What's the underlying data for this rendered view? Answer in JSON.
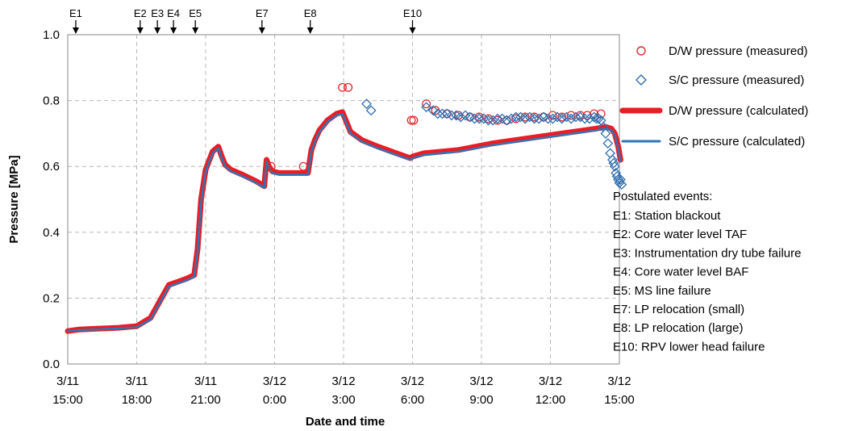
{
  "chart_data": {
    "type": "scatter",
    "xlabel": "Date and time",
    "ylabel": "Pressure [MPa]",
    "xlim": [
      "3/11 15:00",
      "3/12 15:00"
    ],
    "ylim": [
      0,
      1.0
    ],
    "grid": true,
    "legend_position": "right",
    "x_ticks": [
      {
        "hour": 0,
        "line1": "3/11",
        "line2": "15:00"
      },
      {
        "hour": 3,
        "line1": "3/11",
        "line2": "18:00"
      },
      {
        "hour": 6,
        "line1": "3/11",
        "line2": "21:00"
      },
      {
        "hour": 9,
        "line1": "3/12",
        "line2": "0:00"
      },
      {
        "hour": 12,
        "line1": "3/12",
        "line2": "3:00"
      },
      {
        "hour": 15,
        "line1": "3/12",
        "line2": "6:00"
      },
      {
        "hour": 18,
        "line1": "3/12",
        "line2": "9:00"
      },
      {
        "hour": 21,
        "line1": "3/12",
        "line2": "12:00"
      },
      {
        "hour": 24,
        "line1": "3/12",
        "line2": "15:00"
      }
    ],
    "y_ticks": [
      "0.0",
      "0.2",
      "0.4",
      "0.6",
      "0.8",
      "1.0"
    ],
    "events": [
      {
        "label": "E1",
        "hour": 0.35
      },
      {
        "label": "E2",
        "hour": 3.15
      },
      {
        "label": "E3",
        "hour": 3.9
      },
      {
        "label": "E4",
        "hour": 4.6
      },
      {
        "label": "E5",
        "hour": 5.55
      },
      {
        "label": "E7",
        "hour": 8.45
      },
      {
        "label": "E8",
        "hour": 10.55
      },
      {
        "label": "E10",
        "hour": 15.0
      }
    ],
    "series": [
      {
        "name": "D/W pressure (measured)",
        "kind": "scatter",
        "marker": "circle",
        "color": "#e8262b",
        "x": [
          8.85,
          10.25,
          11.95,
          12.2,
          15.05,
          14.95,
          15.6,
          16.0,
          16.5,
          17.0,
          17.5,
          17.9,
          18.3,
          18.7,
          19.1,
          19.5,
          19.9,
          20.3,
          20.7,
          21.1,
          21.5,
          21.9,
          22.3,
          22.6,
          22.9,
          23.2
        ],
        "y": [
          0.6,
          0.6,
          0.84,
          0.84,
          0.74,
          0.74,
          0.79,
          0.77,
          0.76,
          0.755,
          0.75,
          0.75,
          0.745,
          0.74,
          0.74,
          0.745,
          0.75,
          0.75,
          0.75,
          0.755,
          0.75,
          0.755,
          0.755,
          0.755,
          0.76,
          0.76
        ]
      },
      {
        "name": "S/C pressure (measured)",
        "kind": "scatter",
        "marker": "diamond",
        "color": "#2f6fb0",
        "x": [
          13.0,
          13.2,
          15.6,
          15.9,
          16.1,
          16.3,
          16.5,
          16.7,
          16.9,
          17.1,
          17.3,
          17.5,
          17.7,
          17.9,
          18.1,
          18.3,
          18.5,
          18.7,
          18.9,
          19.1,
          19.3,
          19.5,
          19.7,
          19.9,
          20.1,
          20.3,
          20.5,
          20.7,
          20.9,
          21.1,
          21.3,
          21.5,
          21.7,
          21.9,
          22.1,
          22.3,
          22.5,
          22.7,
          22.9,
          23.0,
          23.1,
          23.2,
          23.3,
          23.4,
          23.5,
          23.6,
          23.7,
          23.75,
          23.8,
          23.85,
          23.9,
          23.95,
          24.0,
          24.05,
          24.1
        ],
        "y": [
          0.79,
          0.77,
          0.78,
          0.77,
          0.76,
          0.76,
          0.76,
          0.755,
          0.755,
          0.75,
          0.755,
          0.75,
          0.745,
          0.745,
          0.745,
          0.74,
          0.74,
          0.745,
          0.745,
          0.74,
          0.745,
          0.75,
          0.75,
          0.745,
          0.75,
          0.745,
          0.745,
          0.75,
          0.745,
          0.745,
          0.75,
          0.745,
          0.75,
          0.745,
          0.75,
          0.75,
          0.745,
          0.745,
          0.75,
          0.745,
          0.745,
          0.74,
          0.72,
          0.7,
          0.67,
          0.64,
          0.62,
          0.61,
          0.6,
          0.58,
          0.57,
          0.56,
          0.55,
          0.56,
          0.545
        ]
      },
      {
        "name": "D/W pressure (calculated)",
        "kind": "line",
        "color": "#ea1c24",
        "stroke": "thick",
        "x": [
          0.0,
          0.5,
          2.2,
          3.0,
          3.6,
          4.0,
          4.4,
          4.8,
          5.2,
          5.5,
          5.65,
          5.8,
          6.0,
          6.3,
          6.55,
          6.7,
          6.85,
          7.1,
          7.6,
          8.2,
          8.55,
          8.65,
          8.75,
          8.9,
          9.2,
          10.0,
          10.45,
          10.6,
          10.75,
          10.95,
          11.3,
          11.7,
          11.95,
          12.1,
          12.3,
          12.8,
          13.5,
          14.3,
          14.9,
          15.0,
          15.5,
          17.0,
          18.5,
          20.0,
          21.5,
          23.0,
          23.4,
          23.65,
          23.8,
          23.95,
          24.05
        ],
        "y": [
          0.1,
          0.105,
          0.11,
          0.115,
          0.14,
          0.19,
          0.24,
          0.25,
          0.26,
          0.27,
          0.35,
          0.5,
          0.59,
          0.645,
          0.66,
          0.63,
          0.605,
          0.59,
          0.575,
          0.555,
          0.54,
          0.62,
          0.6,
          0.585,
          0.58,
          0.58,
          0.58,
          0.65,
          0.68,
          0.71,
          0.74,
          0.76,
          0.765,
          0.74,
          0.705,
          0.68,
          0.66,
          0.64,
          0.625,
          0.63,
          0.64,
          0.65,
          0.67,
          0.685,
          0.7,
          0.715,
          0.72,
          0.715,
          0.7,
          0.66,
          0.62
        ]
      },
      {
        "name": "S/C pressure (calculated)",
        "kind": "line",
        "color": "#2e75b6",
        "stroke": "thin",
        "x": [
          0.0,
          0.5,
          2.2,
          3.0,
          3.6,
          4.0,
          4.4,
          4.8,
          5.2,
          5.5,
          5.65,
          5.8,
          6.0,
          6.3,
          6.55,
          6.7,
          6.85,
          7.1,
          7.6,
          8.2,
          8.55,
          8.65,
          8.75,
          8.9,
          9.2,
          10.0,
          10.45,
          10.6,
          10.75,
          10.95,
          11.3,
          11.7,
          11.95,
          12.1,
          12.3,
          12.8,
          13.5,
          14.3,
          14.9,
          15.0,
          15.5,
          17.0,
          18.5,
          20.0,
          21.5,
          23.0,
          23.4,
          23.65,
          23.8,
          23.95,
          24.05
        ],
        "y": [
          0.1,
          0.103,
          0.108,
          0.112,
          0.135,
          0.185,
          0.235,
          0.245,
          0.255,
          0.265,
          0.34,
          0.49,
          0.585,
          0.64,
          0.655,
          0.625,
          0.6,
          0.585,
          0.57,
          0.55,
          0.535,
          0.615,
          0.595,
          0.58,
          0.575,
          0.575,
          0.575,
          0.645,
          0.675,
          0.705,
          0.735,
          0.755,
          0.76,
          0.735,
          0.7,
          0.675,
          0.655,
          0.635,
          0.62,
          0.625,
          0.635,
          0.645,
          0.665,
          0.68,
          0.695,
          0.71,
          0.715,
          0.71,
          0.695,
          0.655,
          0.615
        ]
      }
    ],
    "events_heading": "Postulated events:",
    "events_list": [
      "E1: Station blackout",
      "E2: Core water level TAF",
      "E3: Instrumentation dry tube failure",
      "E4: Core water level BAF",
      "E5: MS line failure",
      "E7: LP relocation (small)",
      "E8: LP relocation (large)",
      "E10: RPV lower head failure"
    ]
  }
}
